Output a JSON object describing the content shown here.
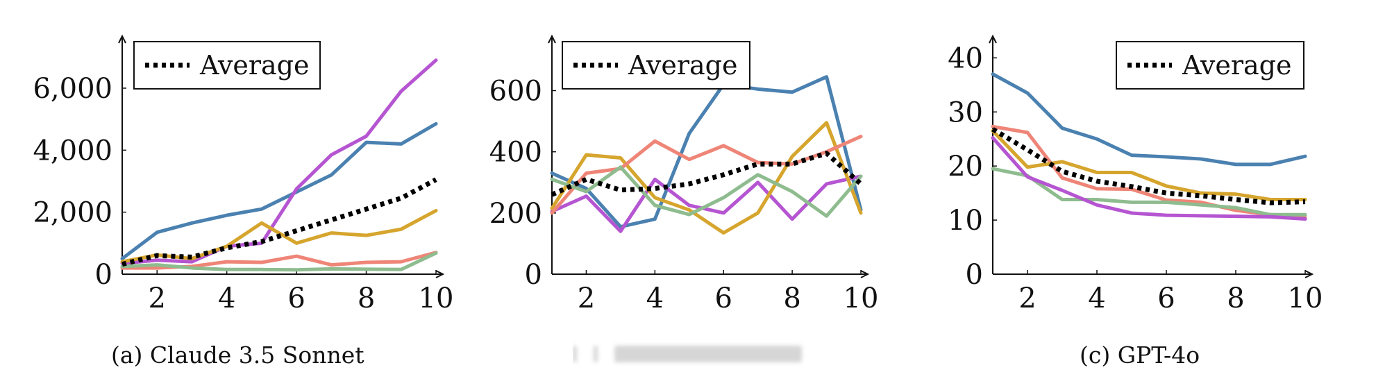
{
  "legend_label": "Average",
  "captions": {
    "a": "(a) Claude 3.5 Sonnet",
    "c": "(c) GPT-4o"
  },
  "colors": {
    "blue": "#4a81b0",
    "purple": "#b555d1",
    "gold": "#d6a52e",
    "salmon": "#ee8577",
    "green": "#8ebc8f",
    "average": "#000000"
  },
  "chart_data": [
    {
      "type": "line",
      "title": "",
      "xlabel": "",
      "ylabel": "",
      "x": [
        1,
        2,
        3,
        4,
        5,
        6,
        7,
        8,
        9,
        10
      ],
      "xlim": [
        1,
        10
      ],
      "xticks": [
        2,
        4,
        6,
        8,
        10
      ],
      "ylim": [
        0,
        7500
      ],
      "yticks": [
        0,
        2000,
        4000,
        6000
      ],
      "ytick_labels": [
        "0",
        "2,000",
        "4,000",
        "6,000"
      ],
      "legend": "top-left",
      "series": [
        {
          "color": "blue",
          "values": [
            500,
            1350,
            1650,
            1900,
            2100,
            2650,
            3200,
            4250,
            4200,
            4850
          ]
        },
        {
          "color": "purple",
          "values": [
            350,
            450,
            400,
            900,
            1000,
            2750,
            3850,
            4450,
            5900,
            6900
          ]
        },
        {
          "color": "gold",
          "values": [
            400,
            620,
            500,
            900,
            1650,
            1000,
            1330,
            1250,
            1450,
            2050
          ]
        },
        {
          "color": "salmon",
          "values": [
            200,
            200,
            250,
            400,
            380,
            580,
            300,
            380,
            400,
            700
          ]
        },
        {
          "color": "green",
          "values": [
            250,
            300,
            200,
            150,
            150,
            140,
            170,
            160,
            150,
            680
          ]
        },
        {
          "name": "Average",
          "color": "average",
          "dashed": true,
          "values": [
            320,
            600,
            550,
            850,
            1050,
            1400,
            1750,
            2100,
            2450,
            3050
          ]
        }
      ]
    },
    {
      "type": "line",
      "title": "",
      "xlabel": "",
      "ylabel": "",
      "x": [
        1,
        2,
        3,
        4,
        5,
        6,
        7,
        8,
        9,
        10
      ],
      "xlim": [
        1,
        10
      ],
      "xticks": [
        2,
        4,
        6,
        8,
        10
      ],
      "ylim": [
        0,
        760
      ],
      "yticks": [
        0,
        200,
        400,
        600
      ],
      "ytick_labels": [
        "0",
        "200",
        "400",
        "600"
      ],
      "legend": "top-left",
      "series": [
        {
          "color": "blue",
          "values": [
            330,
            280,
            155,
            180,
            460,
            620,
            605,
            595,
            645,
            210
          ]
        },
        {
          "color": "purple",
          "values": [
            205,
            255,
            140,
            310,
            225,
            200,
            300,
            180,
            295,
            320
          ]
        },
        {
          "color": "gold",
          "values": [
            215,
            390,
            380,
            250,
            210,
            135,
            200,
            385,
            495,
            200
          ]
        },
        {
          "color": "salmon",
          "values": [
            200,
            330,
            345,
            435,
            375,
            420,
            365,
            360,
            400,
            450
          ]
        },
        {
          "color": "green",
          "values": [
            310,
            270,
            350,
            225,
            195,
            250,
            325,
            270,
            190,
            320
          ]
        },
        {
          "name": "Average",
          "color": "average",
          "dashed": true,
          "values": [
            260,
            310,
            275,
            280,
            295,
            325,
            360,
            360,
            395,
            295
          ]
        }
      ]
    },
    {
      "type": "line",
      "title": "",
      "xlabel": "",
      "ylabel": "",
      "x": [
        1,
        2,
        3,
        4,
        5,
        6,
        7,
        8,
        9,
        10
      ],
      "xlim": [
        1,
        10
      ],
      "xticks": [
        2,
        4,
        6,
        8,
        10
      ],
      "ylim": [
        0,
        43
      ],
      "yticks": [
        0,
        10,
        20,
        30,
        40
      ],
      "ytick_labels": [
        "0",
        "10",
        "20",
        "30",
        "40"
      ],
      "legend": "top-right",
      "series": [
        {
          "color": "blue",
          "values": [
            37,
            33.5,
            27,
            25,
            22,
            21.7,
            21.3,
            20.3,
            20.3,
            21.8
          ]
        },
        {
          "color": "salmon",
          "values": [
            27.3,
            26.2,
            17.8,
            15.8,
            15.7,
            13.7,
            13.3,
            11.8,
            11.0,
            10.5
          ]
        },
        {
          "color": "gold",
          "values": [
            26.5,
            19.8,
            20.8,
            18.8,
            18.8,
            16.3,
            15.0,
            14.8,
            13.8,
            13.8
          ]
        },
        {
          "color": "green",
          "values": [
            19.5,
            18.2,
            13.8,
            13.8,
            13.3,
            13.3,
            12.8,
            12.3,
            11.0,
            11.0
          ]
        },
        {
          "color": "purple",
          "values": [
            25.2,
            18.0,
            15.5,
            12.8,
            11.3,
            10.9,
            10.8,
            10.7,
            10.6,
            10.2
          ]
        },
        {
          "name": "Average",
          "color": "average",
          "dashed": true,
          "values": [
            26.8,
            23.0,
            19.0,
            17.2,
            16.2,
            15.0,
            14.5,
            13.8,
            13.2,
            13.4
          ]
        }
      ]
    }
  ]
}
